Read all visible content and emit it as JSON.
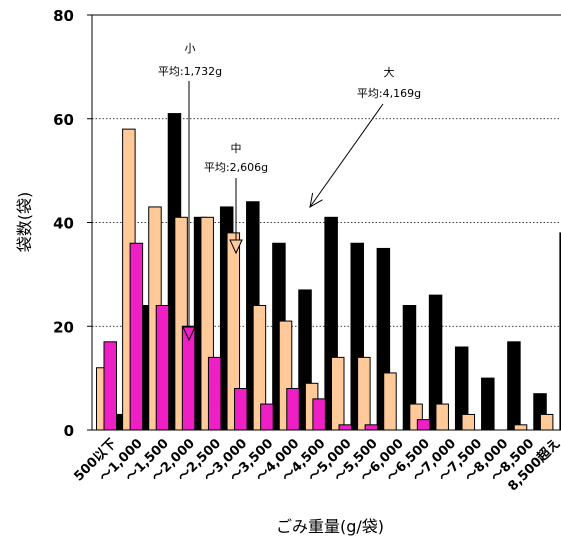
{
  "chart_data": {
    "type": "bar",
    "xlabel": "ごみ重量(g/袋)",
    "ylabel": "袋数(袋)",
    "ylim": [
      0,
      80
    ],
    "yticks": [
      0,
      20,
      40,
      60,
      80
    ],
    "grid": "horizontal dotted at 20, 40, 60",
    "categories": [
      "500以下",
      "～1,000",
      "～1,500",
      "～2,000",
      "～2,500",
      "～3,000",
      "～3,500",
      "～4,000",
      "～4,500",
      "～5,000",
      "～5,500",
      "～6,000",
      "～6,500",
      "～7,000",
      "～7,500",
      "～8,000",
      "～8,500",
      "8,500超え"
    ],
    "series": [
      {
        "name": "大",
        "color": "#000000",
        "values": [
          3,
          24,
          61,
          41,
          43,
          44,
          36,
          27,
          41,
          36,
          35,
          24,
          26,
          16,
          10,
          17,
          7,
          38
        ]
      },
      {
        "name": "中",
        "color": "#FFC99A",
        "values": [
          12,
          58,
          43,
          41,
          41,
          38,
          24,
          21,
          9,
          14,
          14,
          11,
          5,
          5,
          3,
          0,
          1,
          3
        ]
      },
      {
        "name": "小",
        "color": "#EE1FC4",
        "values": [
          17,
          36,
          24,
          20,
          14,
          8,
          5,
          8,
          6,
          1,
          1,
          0,
          2,
          0,
          0,
          0,
          0,
          0
        ]
      }
    ],
    "annotations": [
      {
        "series": "小",
        "label": "小",
        "text": "平均:1,732g",
        "avg_g": 1732
      },
      {
        "series": "中",
        "label": "中",
        "text": "平均:2,606g",
        "avg_g": 2606
      },
      {
        "series": "大",
        "label": "大",
        "text": "平均:4,169g",
        "avg_g": 4169
      }
    ]
  }
}
